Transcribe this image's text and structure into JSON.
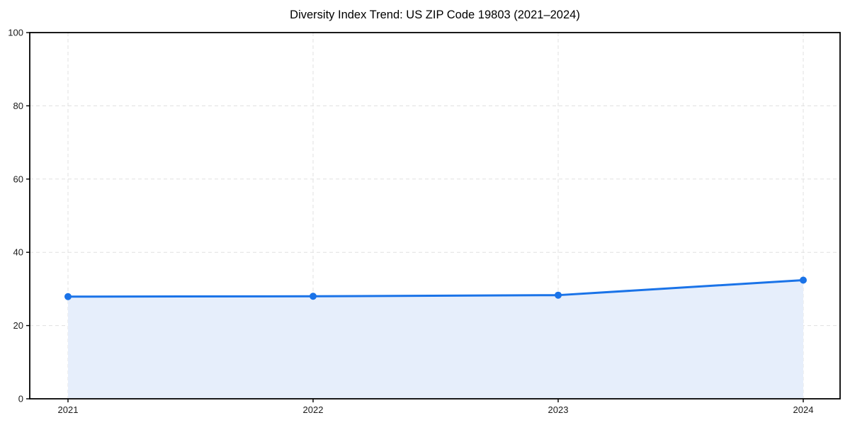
{
  "page": {
    "background": "#ffffff"
  },
  "chart_data": {
    "type": "area",
    "title": "Diversity Index Trend: US ZIP Code 19803 (2021–2024)",
    "x": [
      "2021",
      "2022",
      "2023",
      "2024"
    ],
    "values": [
      27.9,
      28.0,
      28.3,
      32.4
    ],
    "xlabel": "",
    "ylabel": "",
    "ylim": [
      0,
      100
    ],
    "yticks": [
      0,
      20,
      40,
      60,
      80,
      100
    ],
    "grid": true,
    "grid_style": "dashed",
    "legend": "none",
    "marker": "circle",
    "colors": {
      "line": "#1a73e8",
      "marker": "#1a73e8",
      "area": "#e6eefb",
      "grid": "#e0e0e0",
      "axis": "#000000",
      "tick_label": "#1a1a1a",
      "title": "#000000",
      "background": "#ffffff"
    }
  }
}
